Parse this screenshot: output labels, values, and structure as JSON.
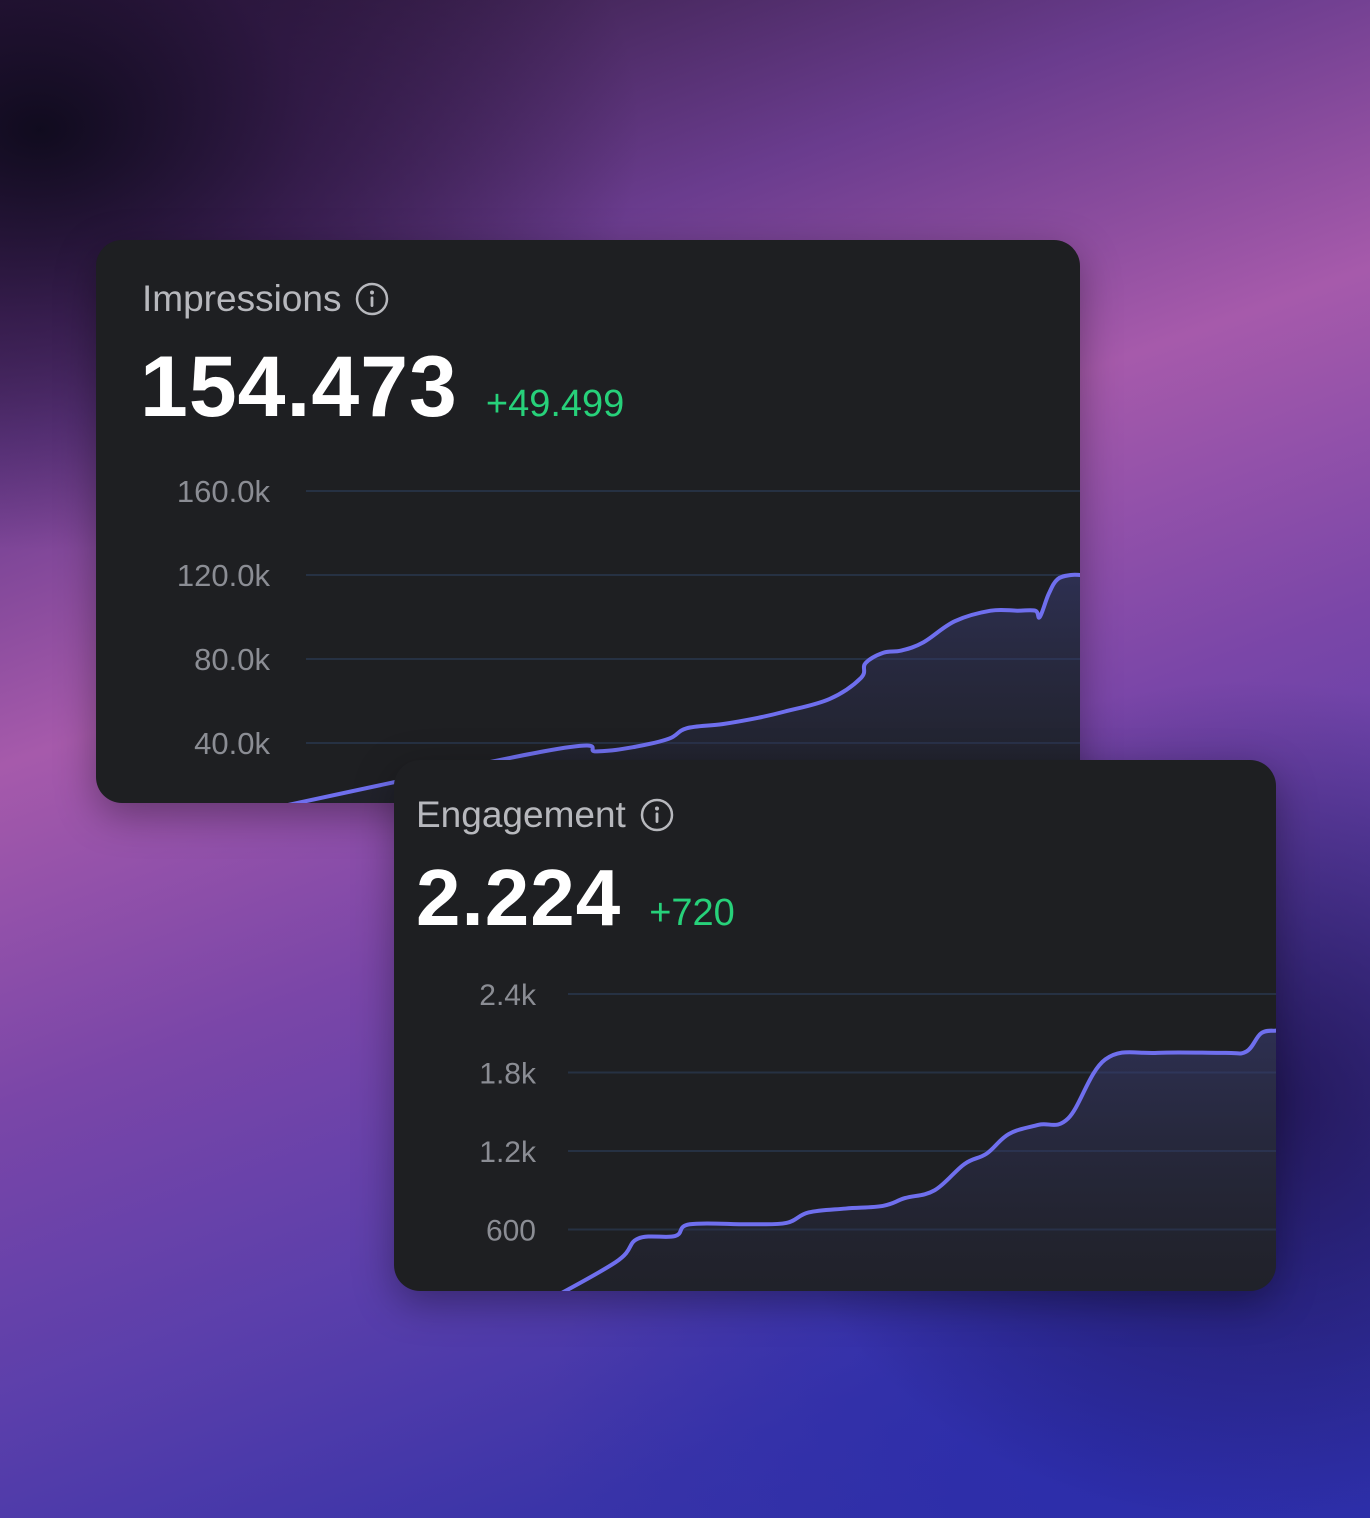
{
  "impressions": {
    "title": "Impressions",
    "value": "154.473",
    "delta": "+49.499"
  },
  "engagement": {
    "title": "Engagement",
    "value": "2.224",
    "delta": "+720"
  },
  "colors": {
    "accent_line": "#6f6fee",
    "delta_positive": "#27d17a",
    "card_bg": "#1e1f22"
  },
  "icons": [
    "info-icon"
  ],
  "chart_data": [
    {
      "type": "area",
      "title": "Impressions",
      "ylim": [
        0,
        165000
      ],
      "yticks": [
        40000,
        80000,
        120000,
        160000
      ],
      "ytick_labels": [
        "40.0k",
        "80.0k",
        "120.0k",
        "160.0k"
      ],
      "grid": true,
      "series": [
        {
          "x": [
            0.0,
            0.4,
            0.46,
            0.5,
            0.54,
            0.56,
            0.6,
            0.64,
            0.67,
            0.72,
            0.755,
            0.76,
            0.78,
            0.8,
            0.825,
            0.86,
            0.9,
            0.93,
            0.95,
            0.955,
            0.965,
            0.975,
            0.99,
            1.0
          ],
          "values": [
            0,
            36000,
            36000,
            38000,
            42000,
            47000,
            49000,
            52000,
            55000,
            61000,
            71000,
            78000,
            83000,
            84000,
            88000,
            98000,
            103000,
            103000,
            103000,
            100000,
            111000,
            118000,
            120000,
            120000
          ]
        }
      ]
    },
    {
      "type": "area",
      "title": "Engagement",
      "ylim": [
        0,
        2600
      ],
      "yticks": [
        600,
        1200,
        1800,
        2400
      ],
      "ytick_labels": [
        "600",
        "1.2k",
        "1.8k",
        "2.4k"
      ],
      "grid": true,
      "series": [
        {
          "x": [
            0.0,
            0.11,
            0.14,
            0.19,
            0.21,
            0.29,
            0.34,
            0.37,
            0.42,
            0.47,
            0.5,
            0.54,
            0.58,
            0.61,
            0.64,
            0.68,
            0.72,
            0.77,
            0.84,
            0.93,
            0.96,
            0.98,
            1.0
          ],
          "values": [
            0,
            350,
            530,
            550,
            640,
            640,
            650,
            730,
            760,
            780,
            840,
            900,
            1100,
            1180,
            1330,
            1400,
            1450,
            1900,
            1950,
            1950,
            1960,
            2100,
            2120
          ]
        }
      ]
    }
  ]
}
